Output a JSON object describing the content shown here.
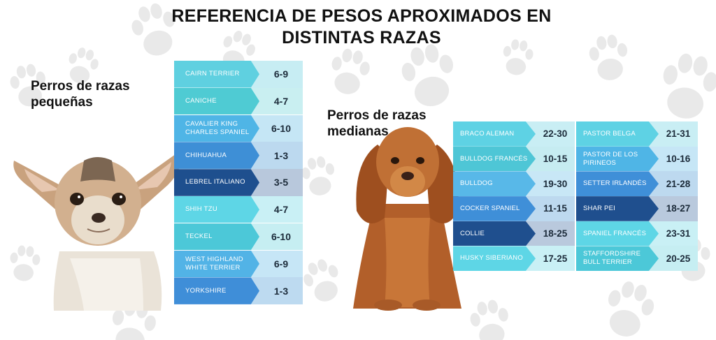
{
  "title": "REFERENCIA DE PESOS APROXIMADOS EN DISTINTAS RAZAS",
  "small": {
    "heading": "Perros de razas pequeñas",
    "rows": [
      {
        "name": "CAIRN TERRIER",
        "value": "6-9",
        "color": "#5fd0e0",
        "bg": "#c7edf3"
      },
      {
        "name": "CANICHE",
        "value": "4-7",
        "color": "#4fcbd3",
        "bg": "#c9eff1"
      },
      {
        "name": "CAVALIER KING CHARLES SPANIEL",
        "value": "6-10",
        "color": "#4fb5e6",
        "bg": "#c5e6f5"
      },
      {
        "name": "CHIHUAHUA",
        "value": "1-3",
        "color": "#3e8fd6",
        "bg": "#bcd9ef"
      },
      {
        "name": "LEBREL ITALIANO",
        "value": "3-5",
        "color": "#1e4f8e",
        "bg": "#b8c8dc"
      },
      {
        "name": "SHIH TZU",
        "value": "4-7",
        "color": "#5ed6e6",
        "bg": "#c9f0f5"
      },
      {
        "name": "TECKEL",
        "value": "6-10",
        "color": "#4cc8d8",
        "bg": "#c6eef2"
      },
      {
        "name": "WEST HIGHLAND WHITE TERRIER",
        "value": "6-9",
        "color": "#52b3e6",
        "bg": "#c6e6f6"
      },
      {
        "name": "YORKSHIRE",
        "value": "1-3",
        "color": "#3f8ed8",
        "bg": "#bddaf0"
      }
    ]
  },
  "medium": {
    "heading": "Perros de razas medianas",
    "left": [
      {
        "name": "BRACO ALEMAN",
        "value": "22-30",
        "color": "#5ed2e4",
        "bg": "#c9eef4"
      },
      {
        "name": "BULLDOG FRANCÉS",
        "value": "10-15",
        "color": "#4ec6d6",
        "bg": "#c6ecf1"
      },
      {
        "name": "BULLDOG",
        "value": "19-30",
        "color": "#58b8e8",
        "bg": "#c8e7f6"
      },
      {
        "name": "COCKER SPANIEL",
        "value": "11-15",
        "color": "#3f8fd8",
        "bg": "#bdd9ef"
      },
      {
        "name": "COLLIE",
        "value": "18-25",
        "color": "#1f4f8e",
        "bg": "#b9c9dd"
      },
      {
        "name": "HUSKY SIBERIANO",
        "value": "17-25",
        "color": "#5ed6e6",
        "bg": "#c9f0f5"
      }
    ],
    "right": [
      {
        "name": "PASTOR BELGA",
        "value": "21-31",
        "color": "#5ed2e4",
        "bg": "#c9eef4"
      },
      {
        "name": "PASTOR DE LOS PIRINEOS",
        "value": "10-16",
        "color": "#4fb5e6",
        "bg": "#c6e6f6"
      },
      {
        "name": "SETTER IRLANDÉS",
        "value": "21-28",
        "color": "#3f8fd8",
        "bg": "#bdd9ef"
      },
      {
        "name": "SHAR PEI",
        "value": "18-27",
        "color": "#1f4f8e",
        "bg": "#b9c9dd"
      },
      {
        "name": "SPANIEL FRANCÉS",
        "value": "23-31",
        "color": "#5ed6e6",
        "bg": "#c9f0f5"
      },
      {
        "name": "STAFFORDSHIRE BULL TERRIER",
        "value": "20-25",
        "color": "#4cc8d8",
        "bg": "#c6eef2"
      }
    ]
  }
}
